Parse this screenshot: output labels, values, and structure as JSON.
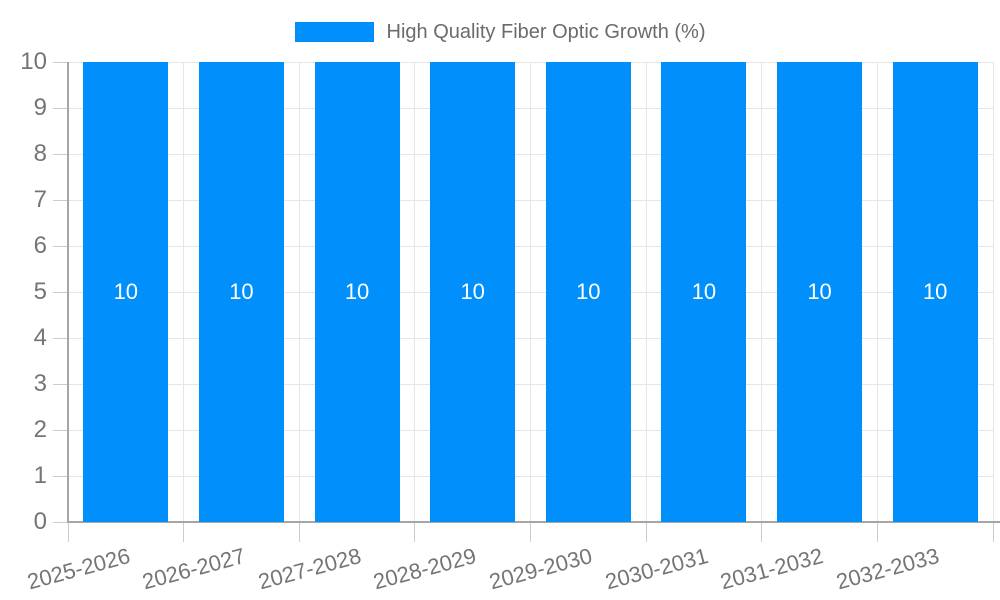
{
  "chart_data": {
    "type": "bar",
    "title": "High Quality Fiber Optic Growth (%)",
    "legend": {
      "position": "top",
      "label": "High Quality Fiber Optic Growth (%)"
    },
    "categories": [
      "2025-2026",
      "2026-2027",
      "2027-2028",
      "2028-2029",
      "2029-2030",
      "2030-2031",
      "2031-2032",
      "2032-2033"
    ],
    "series": [
      {
        "name": "High Quality Fiber Optic Growth (%)",
        "values": [
          10,
          10,
          10,
          10,
          10,
          10,
          10,
          10
        ]
      }
    ],
    "bar_value_labels": [
      "10",
      "10",
      "10",
      "10",
      "10",
      "10",
      "10",
      "10"
    ],
    "xlabel": "",
    "ylabel": "",
    "ylim": [
      0,
      10
    ],
    "yticks": [
      0,
      1,
      2,
      3,
      4,
      5,
      6,
      7,
      8,
      9,
      10
    ],
    "grid": true,
    "x_label_rotation_deg": -15,
    "colors": {
      "bar": "#008FFB",
      "grid": "#e6e6e6",
      "tick": "#cccccc",
      "axis": "#a6a6a6",
      "axis_label_text": "#757575",
      "legend_text": "#6b6b6b",
      "bar_value_text": "#ffffff"
    }
  }
}
